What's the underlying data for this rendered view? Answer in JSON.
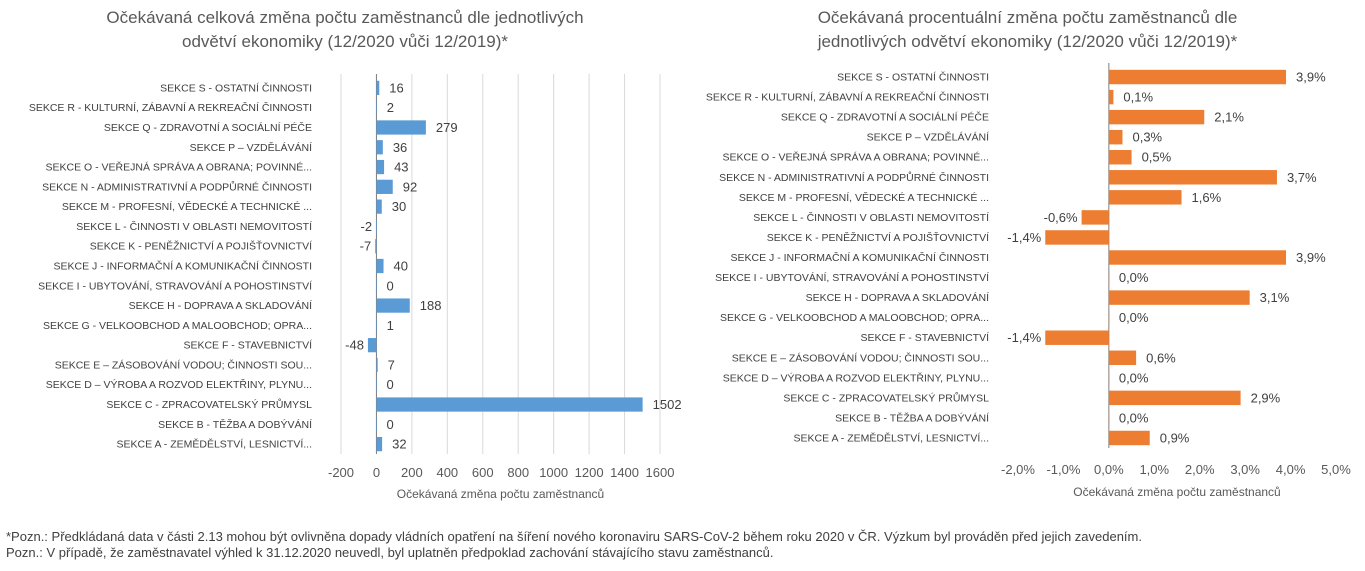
{
  "chart_data": [
    {
      "type": "bar",
      "orientation": "horizontal",
      "title_lines": [
        "Očekávaná celková změna počtu zaměstnanců dle jednotlivých",
        "odvětví ekonomiky (12/2020 vůči 12/2019)*"
      ],
      "xlabel": "Očekávaná změna počtu zaměstnanců",
      "xlim": [
        -200,
        1600
      ],
      "xticks": [
        -200,
        0,
        200,
        400,
        600,
        800,
        1000,
        1200,
        1400,
        1600
      ],
      "tick_labels": [
        "-200",
        "0",
        "200",
        "400",
        "600",
        "800",
        "1000",
        "1200",
        "1400",
        "1600"
      ],
      "color": "#5b9bd5",
      "grid": "vertical",
      "categories": [
        "SEKCE S - OSTATNÍ ČINNOSTI",
        "SEKCE R - KULTURNÍ, ZÁBAVNÍ A REKREAČNÍ ČINNOSTI",
        "SEKCE Q - ZDRAVOTNÍ A SOCIÁLNÍ PÉČE",
        "SEKCE P – VZDĚLÁVÁNÍ",
        "SEKCE O - VEŘEJNÁ SPRÁVA A OBRANA; POVINNÉ...",
        "SEKCE N - ADMINISTRATIVNÍ A PODPŮRNÉ ČINNOSTI",
        "SEKCE M - PROFESNÍ, VĚDECKÉ A TECHNICKÉ ...",
        "SEKCE L - ČINNOSTI V OBLASTI NEMOVITOSTÍ",
        "SEKCE K - PENĚŽNICTVÍ A POJIŠŤOVNICTVÍ",
        "SEKCE J - INFORMAČNÍ A KOMUNIKAČNÍ ČINNOSTI",
        "SEKCE I - UBYTOVÁNÍ, STRAVOVÁNÍ A POHOSTINSTVÍ",
        "SEKCE H - DOPRAVA A SKLADOVÁNÍ",
        "SEKCE G - VELKOOBCHOD A MALOOBCHOD; OPRA...",
        "SEKCE F - STAVEBNICTVÍ",
        "SEKCE E – ZÁSOBOVÁNÍ VODOU; ČINNOSTI SOU...",
        "SEKCE D – VÝROBA A ROZVOD ELEKTŘINY, PLYNU...",
        "SEKCE C - ZPRACOVATELSKÝ PRŮMYSL",
        "SEKCE B - TĚŽBA A DOBÝVÁNÍ",
        "SEKCE A - ZEMĚDĚLSTVÍ, LESNICTVÍ..."
      ],
      "values": [
        16,
        2,
        279,
        36,
        43,
        92,
        30,
        -2,
        -7,
        40,
        0,
        188,
        1,
        -48,
        7,
        0,
        1502,
        0,
        32
      ],
      "value_labels": [
        "16",
        "2",
        "279",
        "36",
        "43",
        "92",
        "30",
        "-2",
        "-7",
        "40",
        "0",
        "188",
        "1",
        "-48",
        "7",
        "0",
        "1502",
        "0",
        "32"
      ]
    },
    {
      "type": "bar",
      "orientation": "horizontal",
      "title_lines": [
        "Očekávaná procentuální změna počtu zaměstnanců dle",
        "jednotlivých odvětví ekonomiky (12/2020 vůči 12/2019)*"
      ],
      "xlabel": "Očekávaná změna počtu zaměstnanců",
      "xlim": [
        -2.0,
        5.0
      ],
      "xticks": [
        -2.0,
        -1.0,
        0.0,
        1.0,
        2.0,
        3.0,
        4.0,
        5.0
      ],
      "tick_labels": [
        "-2,0%",
        "-1,0%",
        "0,0%",
        "1,0%",
        "2,0%",
        "3,0%",
        "4,0%",
        "5,0%"
      ],
      "color": "#ed7d31",
      "grid": "none",
      "categories": [
        "SEKCE S - OSTATNÍ ČINNOSTI",
        "SEKCE R - KULTURNÍ, ZÁBAVNÍ A REKREAČNÍ ČINNOSTI",
        "SEKCE Q - ZDRAVOTNÍ A SOCIÁLNÍ PÉČE",
        "SEKCE P – VZDĚLÁVÁNÍ",
        "SEKCE O - VEŘEJNÁ SPRÁVA A OBRANA; POVINNÉ...",
        "SEKCE N - ADMINISTRATIVNÍ A PODPŮRNÉ ČINNOSTI",
        "SEKCE M - PROFESNÍ, VĚDECKÉ A TECHNICKÉ ...",
        "SEKCE L - ČINNOSTI V OBLASTI NEMOVITOSTÍ",
        "SEKCE K - PENĚŽNICTVÍ A POJIŠŤOVNICTVÍ",
        "SEKCE J - INFORMAČNÍ A KOMUNIKAČNÍ ČINNOSTI",
        "SEKCE I - UBYTOVÁNÍ, STRAVOVÁNÍ A POHOSTINSTVÍ",
        "SEKCE H - DOPRAVA A SKLADOVÁNÍ",
        "SEKCE G - VELKOOBCHOD A MALOOBCHOD; OPRA...",
        "SEKCE F - STAVEBNICTVÍ",
        "SEKCE E – ZÁSOBOVÁNÍ VODOU; ČINNOSTI SOU...",
        "SEKCE D – VÝROBA A ROZVOD ELEKTŘINY, PLYNU...",
        "SEKCE C - ZPRACOVATELSKÝ PRŮMYSL",
        "SEKCE B - TĚŽBA A DOBÝVÁNÍ",
        "SEKCE A - ZEMĚDĚLSTVÍ, LESNICTVÍ..."
      ],
      "values": [
        3.9,
        0.1,
        2.1,
        0.3,
        0.5,
        3.7,
        1.6,
        -0.6,
        -1.4,
        3.9,
        0.0,
        3.1,
        0.0,
        -1.4,
        0.6,
        0.0,
        2.9,
        0.0,
        0.9
      ],
      "value_labels": [
        "3,9%",
        "0,1%",
        "2,1%",
        "0,3%",
        "0,5%",
        "3,7%",
        "1,6%",
        "-0,6%",
        "-1,4%",
        "3,9%",
        "0,0%",
        "3,1%",
        "0,0%",
        "-1,4%",
        "0,6%",
        "0,0%",
        "2,9%",
        "0,0%",
        "0,9%"
      ]
    }
  ],
  "notes": {
    "line1": "*Pozn.: Předkládaná data v části 2.13 mohou být ovlivněna dopady vládních opatření na šíření nového koronaviru SARS-CoV-2 během roku 2020 v ČR. Výzkum byl prováděn před jejich zavedením.",
    "line2": "Pozn.: V případě, že zaměstnavatel výhled k 31.12.2020 neuvedl, byl uplatněn předpoklad zachování stávajícího stavu zaměstnanců."
  }
}
